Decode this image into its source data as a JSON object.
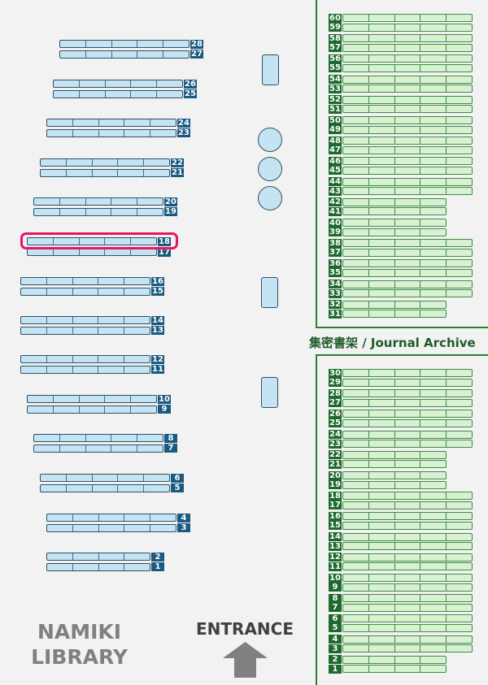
{
  "library_name": [
    "NAMIKI",
    "LIBRARY"
  ],
  "entrance_label": "ENTRANCE",
  "archive_label": "集密書架 / Journal Archive",
  "highlighted_shelf": "18",
  "colors": {
    "general_shelf": "#c4e4f4",
    "archive_shelf": "#d8f1d0",
    "highlight": "#ea1464",
    "archive_border": "#2e7d32"
  },
  "general_shelves": [
    {
      "top": "28",
      "bottom": "27",
      "segments": 5
    },
    {
      "top": "26",
      "bottom": "25",
      "segments": 5
    },
    {
      "top": "24",
      "bottom": "23",
      "segments": 5
    },
    {
      "top": "22",
      "bottom": "21",
      "segments": 5
    },
    {
      "top": "20",
      "bottom": "19",
      "segments": 5
    },
    {
      "top": "18",
      "bottom": "17",
      "segments": 5
    },
    {
      "top": "16",
      "bottom": "15",
      "segments": 5
    },
    {
      "top": "14",
      "bottom": "13",
      "segments": 5
    },
    {
      "top": "12",
      "bottom": "11",
      "segments": 5
    },
    {
      "top": "10",
      "bottom": "9",
      "segments": 5
    },
    {
      "top": "8",
      "bottom": "7",
      "segments": 5
    },
    {
      "top": "6",
      "bottom": "5",
      "segments": 5
    },
    {
      "top": "4",
      "bottom": "3",
      "segments": 5
    },
    {
      "top": "2",
      "bottom": "1",
      "segments": 4
    }
  ],
  "archive_upper": [
    {
      "top": "60",
      "bottom": "59",
      "segments": 5
    },
    {
      "top": "58",
      "bottom": "57",
      "segments": 5
    },
    {
      "top": "56",
      "bottom": "55",
      "segments": 5
    },
    {
      "top": "54",
      "bottom": "53",
      "segments": 5
    },
    {
      "top": "52",
      "bottom": "51",
      "segments": 5
    },
    {
      "top": "50",
      "bottom": "49",
      "segments": 5
    },
    {
      "top": "48",
      "bottom": "47",
      "segments": 5
    },
    {
      "top": "46",
      "bottom": "45",
      "segments": 5
    },
    {
      "top": "44",
      "bottom": "43",
      "segments": 5
    },
    {
      "top": "42",
      "bottom": "41",
      "segments": 4
    },
    {
      "top": "40",
      "bottom": "39",
      "segments": 4
    },
    {
      "top": "38",
      "bottom": "37",
      "segments": 5
    },
    {
      "top": "36",
      "bottom": "35",
      "segments": 5
    },
    {
      "top": "34",
      "bottom": "33",
      "segments": 5
    },
    {
      "top": "32",
      "bottom": "31",
      "segments": 4
    }
  ],
  "archive_lower": [
    {
      "top": "30",
      "bottom": "29",
      "segments": 5
    },
    {
      "top": "28",
      "bottom": "27",
      "segments": 5
    },
    {
      "top": "26",
      "bottom": "25",
      "segments": 5
    },
    {
      "top": "24",
      "bottom": "23",
      "segments": 5
    },
    {
      "top": "22",
      "bottom": "21",
      "segments": 4
    },
    {
      "top": "20",
      "bottom": "19",
      "segments": 4
    },
    {
      "top": "18",
      "bottom": "17",
      "segments": 5
    },
    {
      "top": "16",
      "bottom": "15",
      "segments": 5
    },
    {
      "top": "14",
      "bottom": "13",
      "segments": 5
    },
    {
      "top": "12",
      "bottom": "11",
      "segments": 5
    },
    {
      "top": "10",
      "bottom": "9",
      "segments": 5
    },
    {
      "top": "8",
      "bottom": "7",
      "segments": 5
    },
    {
      "top": "6",
      "bottom": "5",
      "segments": 5
    },
    {
      "top": "4",
      "bottom": "3",
      "segments": 5
    },
    {
      "top": "2",
      "bottom": "1",
      "segments": 4
    }
  ]
}
